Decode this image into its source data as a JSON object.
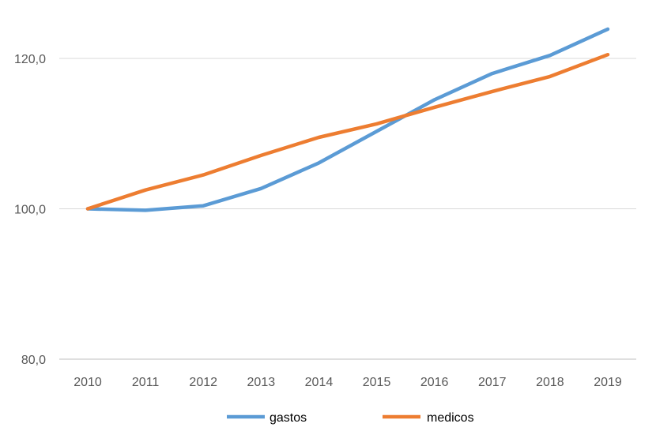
{
  "chart_data": {
    "type": "line",
    "title": "",
    "xlabel": "",
    "ylabel": "",
    "categories": [
      "2010",
      "2011",
      "2012",
      "2013",
      "2014",
      "2015",
      "2016",
      "2017",
      "2018",
      "2019"
    ],
    "y_ticks": [
      "80,0",
      "100,0",
      "120,0"
    ],
    "ylim": [
      80,
      124
    ],
    "grid": true,
    "legend_position": "bottom",
    "series": [
      {
        "name": "gastos",
        "color": "#5B9BD5",
        "values": [
          100.0,
          99.8,
          100.4,
          102.7,
          106.1,
          110.3,
          114.5,
          118.0,
          120.4,
          123.9
        ]
      },
      {
        "name": "medicos",
        "color": "#ED7D31",
        "values": [
          100.0,
          102.5,
          104.5,
          107.1,
          109.5,
          111.3,
          113.5,
          115.6,
          117.6,
          120.5
        ]
      }
    ]
  }
}
